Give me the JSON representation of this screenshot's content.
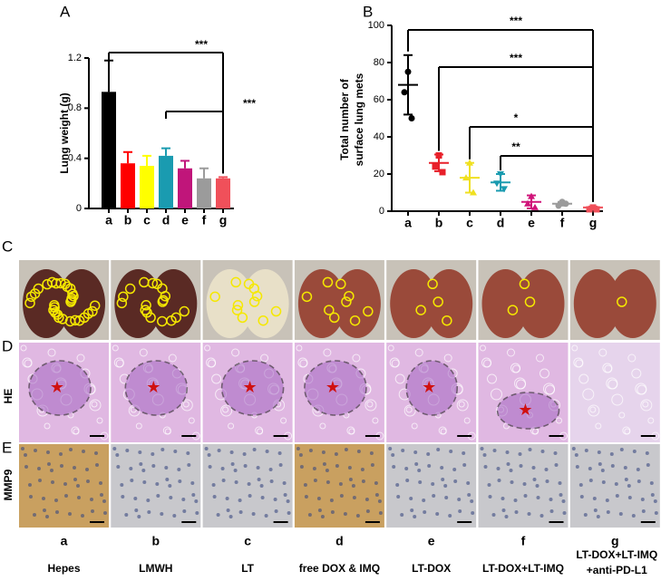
{
  "chart_data": [
    {
      "type": "bar",
      "panel": "A",
      "ylabel": "Lung weight (g)",
      "categories": [
        "a",
        "b",
        "c",
        "d",
        "e",
        "f",
        "g"
      ],
      "values": [
        0.93,
        0.36,
        0.34,
        0.42,
        0.32,
        0.24,
        0.24
      ],
      "errors": [
        0.25,
        0.09,
        0.08,
        0.06,
        0.06,
        0.08,
        0.01
      ],
      "colors": [
        "#000000",
        "#ff0000",
        "#ffff00",
        "#1a9bb0",
        "#c0157a",
        "#9b9b9b",
        "#f0505a"
      ],
      "ylim": [
        0,
        1.2
      ],
      "yticks": [
        0,
        0.4,
        0.8,
        1.2
      ],
      "annotations": [
        {
          "text": "***",
          "categories": [
            "a",
            "g"
          ]
        },
        {
          "text": "***",
          "categories": [
            "d",
            "g"
          ]
        }
      ]
    },
    {
      "type": "scatter",
      "panel": "B",
      "ylabel": [
        "Total number of",
        "surface lung mets"
      ],
      "categories": [
        "a",
        "b",
        "c",
        "d",
        "e",
        "f",
        "g"
      ],
      "points": [
        [
          75,
          64,
          50
        ],
        [
          30,
          24,
          21
        ],
        [
          26,
          18,
          10
        ],
        [
          20,
          15,
          12
        ],
        [
          8,
          4,
          2
        ],
        [
          5,
          3,
          4
        ],
        [
          2,
          1,
          1
        ]
      ],
      "means": [
        68,
        26,
        18,
        15.5,
        5,
        4,
        2
      ],
      "sd": [
        16,
        4.5,
        8,
        4.5,
        3.5,
        1,
        0.5
      ],
      "colors": [
        "#000000",
        "#e8202a",
        "#f0e020",
        "#1a9bb0",
        "#d0157a",
        "#9b9b9b",
        "#f0505a"
      ],
      "ylim": [
        0,
        100
      ],
      "yticks": [
        0,
        20,
        40,
        60,
        80,
        100
      ],
      "annotations": [
        {
          "text": "***",
          "categories": [
            "a",
            "g"
          ]
        },
        {
          "text": "***",
          "categories": [
            "b",
            "g"
          ]
        },
        {
          "text": "*",
          "categories": [
            "c",
            "g"
          ]
        },
        {
          "text": "**",
          "categories": [
            "d",
            "g"
          ]
        }
      ]
    }
  ],
  "figure": {
    "panels": [
      "C",
      "D",
      "E"
    ],
    "row_labels": [
      "HE",
      "MMP9"
    ],
    "groups": [
      "a",
      "b",
      "c",
      "d",
      "e",
      "f",
      "g"
    ],
    "names": [
      [
        "Hepes"
      ],
      [
        "LMWH"
      ],
      [
        "LT"
      ],
      [
        "free DOX & IMQ"
      ],
      [
        "LT-DOX"
      ],
      [
        "LT-DOX+LT-IMQ"
      ],
      [
        "LT-DOX+LT-IMQ",
        "+anti-PD-L1"
      ]
    ]
  }
}
